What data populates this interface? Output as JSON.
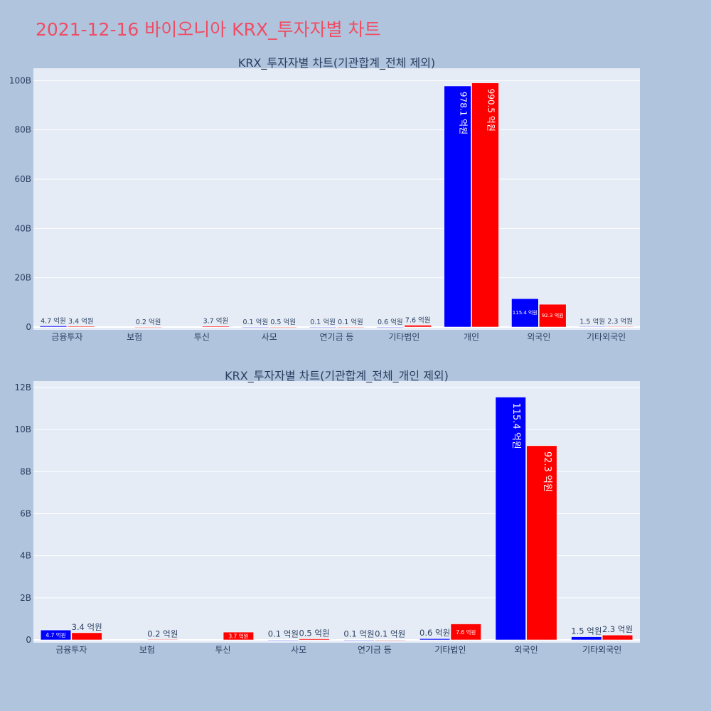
{
  "page_title": "2021-12-16 바이오니아 KRX_투자자별 차트",
  "colors": {
    "background": "#b0c4de",
    "plot_bg": "#e5ecf6",
    "title": "#ef4d63",
    "series_a": "#0000ff",
    "series_b": "#ff0000"
  },
  "chart_data": [
    {
      "type": "bar",
      "title": "KRX_투자자별 차트(기관합계_전체 제외)",
      "categories": [
        "금융투자",
        "보험",
        "투신",
        "사모",
        "연기금 등",
        "기타법인",
        "개인",
        "외국인",
        "기타외국인"
      ],
      "series": [
        {
          "color": "#0000ff",
          "values": [
            470000000,
            0,
            0,
            10000000,
            10000000,
            60000000,
            97810000000,
            11540000000,
            150000000
          ],
          "labels": [
            "4.7 억원",
            "",
            "",
            "0.1 억원",
            "0.1 억원",
            "0.6 억원",
            "978.1 억원",
            "115.4 억원",
            "1.5 억원"
          ]
        },
        {
          "color": "#ff0000",
          "values": [
            340000000,
            20000000,
            370000000,
            50000000,
            10000000,
            760000000,
            99050000000,
            9230000000,
            230000000
          ],
          "labels": [
            "3.4 억원",
            "0.2 억원",
            "3.7 억원",
            "0.5 억원",
            "0.1 억원",
            "7.6 억원",
            "990.5 억원",
            "92.3 억원",
            "2.3 억원"
          ]
        }
      ],
      "ylim": [
        0,
        105000000000
      ],
      "y_ticks": [
        0,
        20000000000,
        40000000000,
        60000000000,
        80000000000,
        100000000000
      ],
      "y_tick_labels": [
        "0",
        "20B",
        "40B",
        "60B",
        "80B",
        "100B"
      ],
      "grid": true,
      "legend": "none"
    },
    {
      "type": "bar",
      "title": "KRX_투자자별 차트(기관합계_전체_개인 제외)",
      "categories": [
        "금융투자",
        "보험",
        "투신",
        "사모",
        "연기금 등",
        "기타법인",
        "외국인",
        "기타외국인"
      ],
      "series": [
        {
          "color": "#0000ff",
          "values": [
            470000000,
            0,
            0,
            10000000,
            10000000,
            60000000,
            11540000000,
            150000000
          ],
          "labels": [
            "4.7 억원",
            "",
            "",
            "0.1 억원",
            "0.1 억원",
            "0.6 억원",
            "115.4 억원",
            "1.5 억원"
          ]
        },
        {
          "color": "#ff0000",
          "values": [
            340000000,
            20000000,
            370000000,
            50000000,
            10000000,
            760000000,
            9230000000,
            230000000
          ],
          "labels": [
            "3.4 억원",
            "0.2 억원",
            "3.7 억원",
            "0.5 억원",
            "0.1 억원",
            "7.6 억원",
            "92.3 억원",
            "2.3 억원"
          ]
        }
      ],
      "ylim": [
        0,
        12300000000
      ],
      "y_ticks": [
        0,
        2000000000,
        4000000000,
        6000000000,
        8000000000,
        10000000000,
        12000000000
      ],
      "y_tick_labels": [
        "0",
        "2B",
        "4B",
        "6B",
        "8B",
        "10B",
        "12B"
      ],
      "grid": true,
      "legend": "none"
    }
  ]
}
